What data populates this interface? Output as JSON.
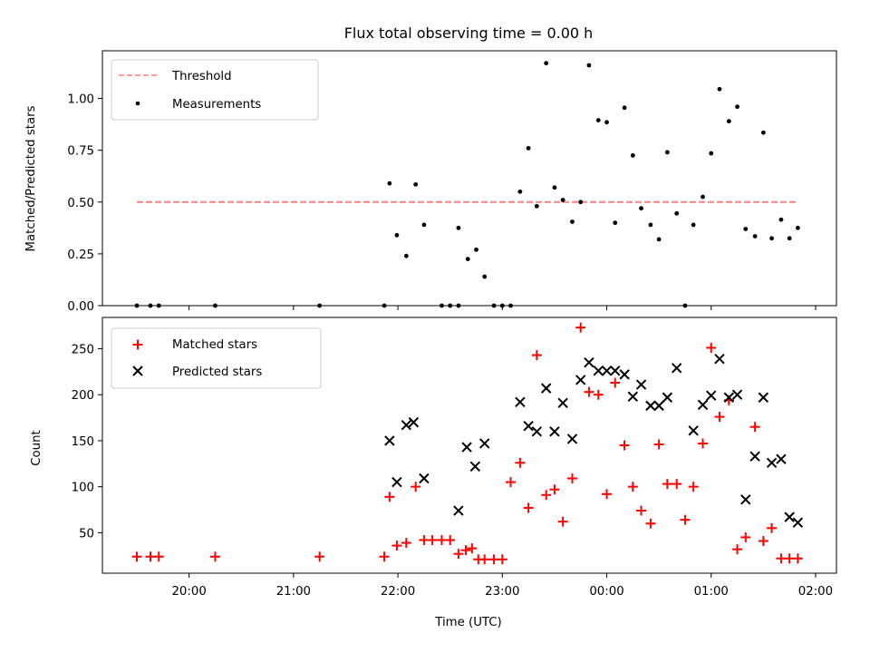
{
  "chart_data": [
    {
      "type": "scatter",
      "title": "Flux total observing time = 0.00 h",
      "xlabel": "",
      "ylabel": "Matched/Predicted stars",
      "xlim": [
        19.17,
        26.2
      ],
      "ylim": [
        0.0,
        1.23
      ],
      "yticks": [
        0.0,
        0.25,
        0.5,
        0.75,
        1.0
      ],
      "ytick_labels": [
        "0.00",
        "0.25",
        "0.50",
        "0.75",
        "1.00"
      ],
      "legend": [
        "Threshold",
        "Measurements"
      ],
      "legend_position": "upper left",
      "series": [
        {
          "name": "Threshold",
          "kind": "dashed-line",
          "color": "#ff7f7f",
          "x": [
            19.5,
            25.83
          ],
          "y": [
            0.5,
            0.5
          ]
        },
        {
          "name": "Measurements",
          "kind": "dots",
          "color": "#000000",
          "x": [
            19.5,
            19.63,
            19.71,
            20.25,
            21.25,
            21.87,
            21.92,
            21.99,
            22.08,
            22.17,
            22.25,
            22.42,
            22.5,
            22.58,
            22.58,
            22.67,
            22.75,
            22.83,
            22.92,
            23.0,
            23.08,
            23.17,
            23.25,
            23.33,
            23.42,
            23.5,
            23.58,
            23.67,
            23.75,
            23.83,
            23.92,
            24.0,
            24.08,
            24.17,
            24.25,
            24.33,
            24.42,
            24.5,
            24.58,
            24.67,
            24.75,
            24.83,
            24.92,
            25.0,
            25.08,
            25.17,
            25.25,
            25.33,
            25.42,
            25.5,
            25.58,
            25.67,
            25.75,
            25.83
          ],
          "y": [
            0.0,
            0.0,
            0.0,
            0.0,
            0.0,
            0.0,
            0.59,
            0.34,
            0.24,
            0.585,
            0.39,
            0.0,
            0.0,
            0.0,
            0.375,
            0.225,
            0.27,
            0.14,
            0.0,
            0.0,
            0.0,
            0.55,
            0.76,
            0.48,
            1.17,
            0.57,
            0.51,
            0.405,
            0.5,
            1.16,
            0.895,
            0.885,
            0.4,
            0.955,
            0.725,
            0.47,
            0.39,
            0.32,
            0.74,
            0.445,
            0.0,
            0.39,
            0.525,
            0.735,
            1.045,
            0.89,
            0.96,
            0.37,
            0.335,
            0.835,
            0.325,
            0.415,
            0.325,
            0.375
          ]
        }
      ]
    },
    {
      "type": "scatter",
      "title": "",
      "xlabel": "Time (UTC)",
      "ylabel": "Count",
      "xlim": [
        19.17,
        26.2
      ],
      "ylim": [
        6,
        284
      ],
      "yticks": [
        50,
        100,
        150,
        200,
        250
      ],
      "ytick_labels": [
        "50",
        "100",
        "150",
        "200",
        "250"
      ],
      "xticks": [
        20,
        21,
        22,
        23,
        24,
        25,
        26
      ],
      "xtick_labels": [
        "20:00",
        "21:00",
        "22:00",
        "23:00",
        "00:00",
        "01:00",
        "02:00"
      ],
      "legend": [
        "Matched stars",
        "Predicted stars"
      ],
      "legend_position": "upper left",
      "series": [
        {
          "name": "Matched stars",
          "marker": "plus",
          "color": "#ff0000",
          "x": [
            19.5,
            19.63,
            19.71,
            20.25,
            21.25,
            21.87,
            21.92,
            21.99,
            22.08,
            22.17,
            22.25,
            22.33,
            22.42,
            22.5,
            22.58,
            22.65,
            22.71,
            22.77,
            22.83,
            22.92,
            23.0,
            23.08,
            23.17,
            23.25,
            23.33,
            23.42,
            23.5,
            23.58,
            23.67,
            23.75,
            23.83,
            23.92,
            24.0,
            24.08,
            24.17,
            24.25,
            24.33,
            24.42,
            24.5,
            24.58,
            24.67,
            24.75,
            24.83,
            24.92,
            25.0,
            25.08,
            25.17,
            25.25,
            25.33,
            25.42,
            25.5,
            25.58,
            25.67,
            25.75,
            25.83
          ],
          "y": [
            24,
            24,
            24,
            24,
            24,
            24,
            89,
            36,
            39,
            100,
            42,
            42,
            42,
            42,
            27,
            31,
            33,
            21,
            21,
            21,
            21,
            105,
            126,
            77,
            243,
            91,
            97,
            62,
            109,
            273,
            203,
            200,
            92,
            213,
            145,
            100,
            74,
            60,
            146,
            103,
            103,
            64,
            100,
            147,
            251,
            176,
            194,
            32,
            45,
            165,
            41,
            55,
            22,
            22,
            22
          ]
        },
        {
          "name": "Predicted stars",
          "marker": "x",
          "color": "#000000",
          "x": [
            21.92,
            21.99,
            22.08,
            22.15,
            22.25,
            22.58,
            22.66,
            22.74,
            22.83,
            23.17,
            23.25,
            23.33,
            23.42,
            23.5,
            23.58,
            23.67,
            23.75,
            23.83,
            23.92,
            24.0,
            24.08,
            24.17,
            24.25,
            24.33,
            24.42,
            24.5,
            24.58,
            24.67,
            24.83,
            24.92,
            25.0,
            25.08,
            25.17,
            25.25,
            25.33,
            25.42,
            25.5,
            25.58,
            25.67,
            25.75,
            25.83
          ],
          "y": [
            150,
            105,
            167,
            170,
            109,
            74,
            143,
            122,
            147,
            192,
            166,
            160,
            207,
            160,
            191,
            152,
            216,
            235,
            226,
            226,
            226,
            222,
            198,
            211,
            188,
            188,
            197,
            229,
            161,
            189,
            199,
            239,
            197,
            200,
            86,
            133,
            197,
            126,
            130,
            67,
            61
          ]
        }
      ]
    }
  ]
}
